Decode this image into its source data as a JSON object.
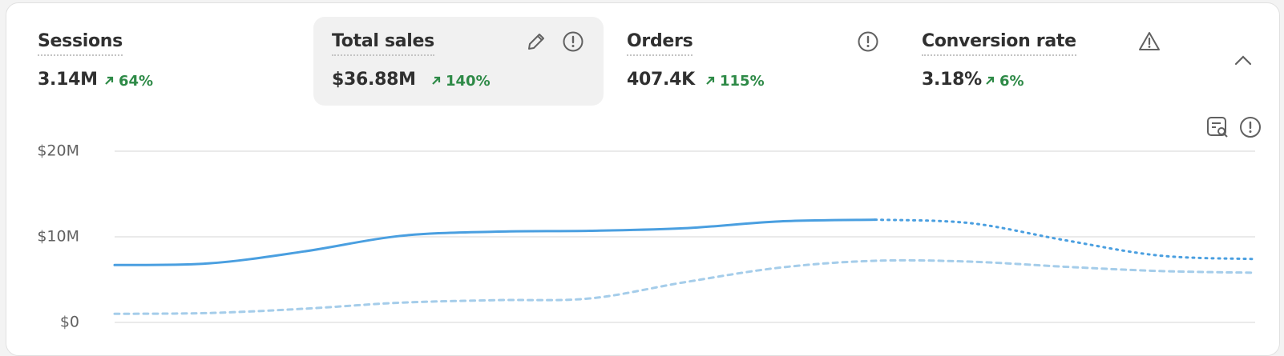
{
  "metrics": [
    {
      "title": "Sessions",
      "value": "3.14M",
      "change": "64%"
    },
    {
      "title": "Total sales",
      "value": "$36.88M",
      "change": "140%"
    },
    {
      "title": "Orders",
      "value": "407.4K",
      "change": "115%"
    },
    {
      "title": "Conversion rate",
      "value": "3.18%",
      "change": "6%"
    }
  ],
  "chart_data": {
    "type": "line",
    "categories": [
      null,
      null,
      null,
      null,
      null,
      null,
      null,
      null,
      null,
      null,
      null,
      null,
      null
    ],
    "series": [
      {
        "color": "#4a9fe0",
        "style": "solid",
        "values": [
          6700000,
          6900000,
          8300000,
          10100000,
          10600000,
          10700000,
          11000000,
          11800000,
          12000000,
          null,
          null,
          null,
          null
        ]
      },
      {
        "color": "#4a9fe0",
        "style": "dotted",
        "values": [
          null,
          null,
          null,
          null,
          null,
          null,
          null,
          null,
          12000000,
          11600000,
          9600000,
          7800000,
          7400000
        ]
      },
      {
        "color": "#a5cdea",
        "style": "dashed",
        "values": [
          1000000,
          1100000,
          1600000,
          2300000,
          2600000,
          2800000,
          4700000,
          6400000,
          7200000,
          7100000,
          6500000,
          6000000,
          5800000
        ]
      }
    ],
    "ylim": [
      0,
      20000000
    ],
    "yticks": [
      {
        "value": 0,
        "label": "$0"
      },
      {
        "value": 10000000,
        "label": "$10M"
      },
      {
        "value": 20000000,
        "label": "$20M"
      }
    ],
    "grid": true
  }
}
